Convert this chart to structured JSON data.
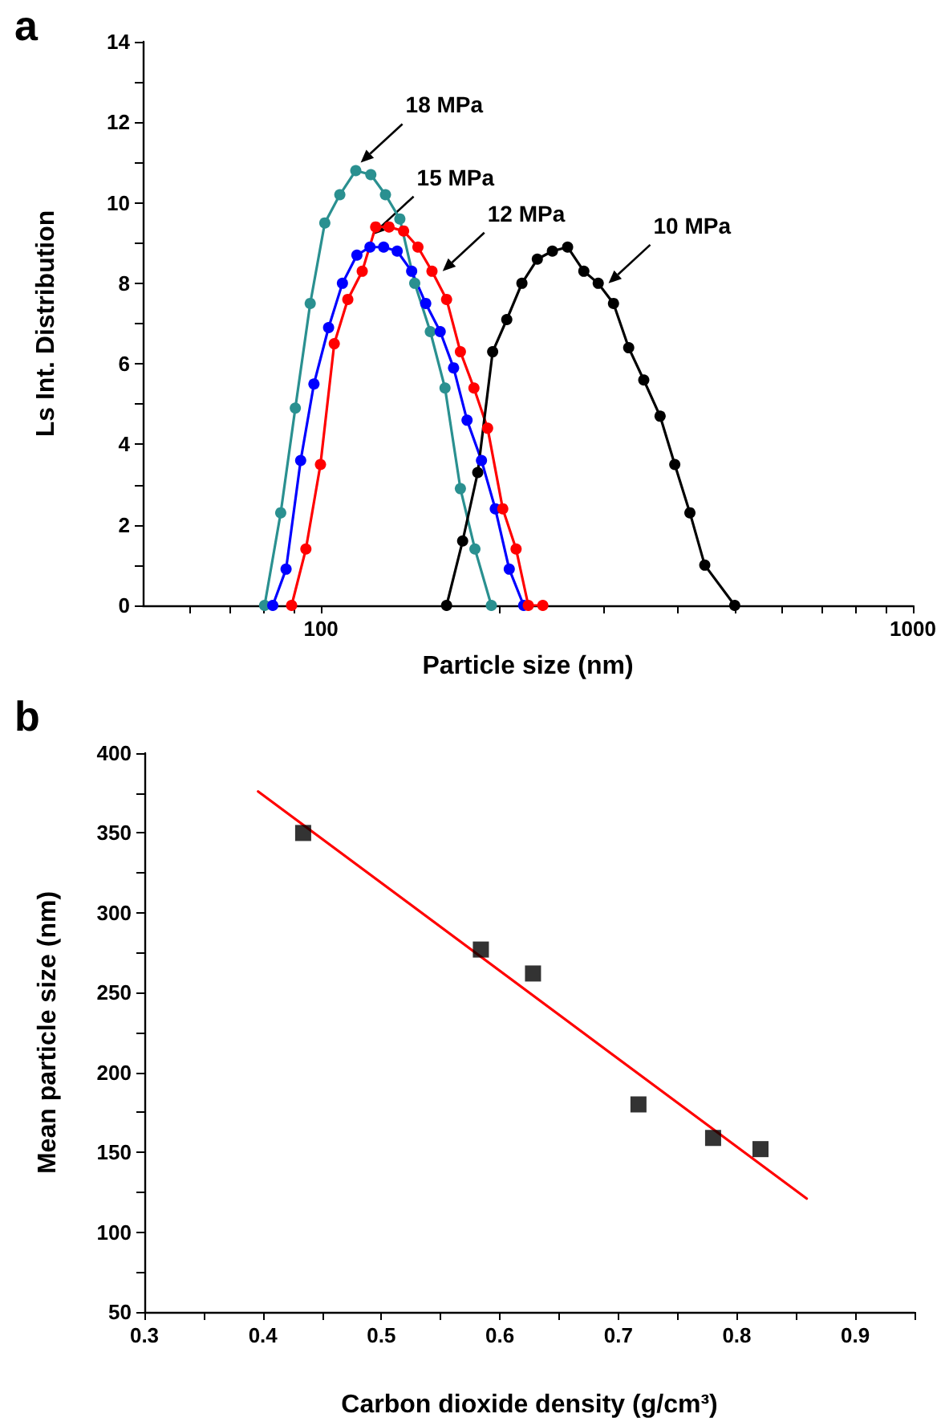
{
  "chart_data": [
    {
      "type": "line",
      "title": "a",
      "xlabel": "Particle size (nm)",
      "ylabel": "Ls Int. Distribution",
      "log": "x",
      "marker": "circle",
      "line_style": "solid",
      "xlim": [
        50,
        1000
      ],
      "xticks": [
        {
          "value": 60,
          "label": null
        },
        {
          "value": 70,
          "label": null
        },
        {
          "value": 80,
          "label": null
        },
        {
          "value": 90,
          "label": null
        },
        100,
        {
          "value": 200,
          "label": null
        },
        {
          "value": 300,
          "label": null
        },
        {
          "value": 400,
          "label": null
        },
        {
          "value": 500,
          "label": null
        },
        {
          "value": 600,
          "label": null
        },
        {
          "value": 700,
          "label": null
        },
        {
          "value": 800,
          "label": null
        },
        {
          "value": 900,
          "label": null
        },
        1000
      ],
      "ylim": [
        0,
        14
      ],
      "yticks": [
        0,
        {
          "value": 1,
          "label": null
        },
        2,
        {
          "value": 3,
          "label": null
        },
        4,
        {
          "value": 5,
          "label": null
        },
        6,
        {
          "value": 7,
          "label": null
        },
        8,
        {
          "value": 9,
          "label": null
        },
        10,
        {
          "value": 11,
          "label": null
        },
        12,
        {
          "value": 13,
          "label": null
        },
        14
      ],
      "series": [
        {
          "color": "#2a9090",
          "x": [
            80.3,
            85.5,
            90.5,
            95.9,
            101.5,
            107.6,
            114.5,
            121.4,
            128.5,
            135.9,
            144,
            153,
            162,
            172,
            182,
            194
          ],
          "values": [
            0,
            2.3,
            4.9,
            7.5,
            9.5,
            10.2,
            10.8,
            10.7,
            10.2,
            9.6,
            8.0,
            6.8,
            5.4,
            2.9,
            1.4,
            0
          ]
        },
        {
          "color": "#0000ff",
          "x": [
            82.9,
            87.3,
            92.4,
            97.3,
            103,
            108.7,
            115,
            121,
            127.6,
            134.5,
            142.3,
            150.3,
            159,
            167.5,
            176.5,
            186.7,
            197,
            208,
            220
          ],
          "values": [
            0,
            0.9,
            3.6,
            5.5,
            6.9,
            8.0,
            8.7,
            8.9,
            8.9,
            8.8,
            8.3,
            7.5,
            6.8,
            5.9,
            4.6,
            3.6,
            2.4,
            0.9,
            0
          ]
        },
        {
          "color": "#ff0000",
          "x": [
            89.2,
            94.3,
            99.8,
            105.3,
            111,
            117.4,
            123.7,
            130.3,
            137.9,
            145.8,
            154,
            163,
            172,
            181.3,
            191.2,
            202.8,
            213.6,
            224,
            237
          ],
          "values": [
            0,
            1.4,
            3.5,
            6.5,
            7.6,
            8.3,
            9.4,
            9.4,
            9.3,
            8.9,
            8.3,
            7.6,
            6.3,
            5.4,
            4.4,
            2.4,
            1.4,
            0,
            0
          ]
        },
        {
          "color": "#000000",
          "x": [
            163,
            173.5,
            184,
            195,
            206,
            218.5,
            232,
            246,
            261,
            278,
            294,
            312,
            331,
            351,
            374,
            396,
            420,
            445,
            500
          ],
          "values": [
            0,
            1.6,
            3.3,
            6.3,
            7.1,
            8.0,
            8.6,
            8.8,
            8.9,
            8.3,
            8.0,
            7.5,
            6.4,
            5.6,
            4.7,
            3.5,
            2.3,
            1.0,
            0
          ]
        }
      ],
      "annotations": [
        {
          "text": "18 MPa",
          "x": 116.7,
          "y": 11.0
        },
        {
          "text": "15 MPa",
          "x": 121.9,
          "y": 9.2
        },
        {
          "text": "12 MPa",
          "x": 160.5,
          "y": 8.3
        },
        {
          "text": "10 MPa",
          "x": 306,
          "y": 8.0
        }
      ]
    },
    {
      "type": "scatter",
      "title": "b",
      "xlabel": "Carbon dioxide density (g/cm³)",
      "ylabel": "Mean particle size (nm)",
      "marker": "square",
      "xlim": [
        0.3,
        0.95
      ],
      "xticks": [
        0.3,
        {
          "value": 0.35,
          "label": null
        },
        0.4,
        {
          "value": 0.45,
          "label": null
        },
        0.5,
        {
          "value": 0.55,
          "label": null
        },
        0.6,
        {
          "value": 0.65,
          "label": null
        },
        0.7,
        {
          "value": 0.75,
          "label": null
        },
        0.8,
        {
          "value": 0.85,
          "label": null
        },
        0.9,
        {
          "value": 0.95,
          "label": null
        }
      ],
      "ylim": [
        50,
        400
      ],
      "yticks": [
        50,
        {
          "value": 75,
          "label": null
        },
        100,
        {
          "value": 125,
          "label": null
        },
        150,
        {
          "value": 175,
          "label": null
        },
        200,
        {
          "value": 225,
          "label": null
        },
        250,
        {
          "value": 275,
          "label": null
        },
        300,
        {
          "value": 325,
          "label": null
        },
        350,
        {
          "value": 375,
          "label": null
        },
        400
      ],
      "series": [
        {
          "color": "#000000",
          "x": [
            0.434,
            0.584,
            0.628,
            0.717,
            0.78,
            0.82
          ],
          "values": [
            350,
            277,
            262,
            180,
            159,
            152
          ]
        },
        {
          "type": "line",
          "marker": "none",
          "color": "#ff0000",
          "x": [
            0.396,
            0.859
          ],
          "values": [
            376,
            121
          ]
        }
      ]
    }
  ]
}
